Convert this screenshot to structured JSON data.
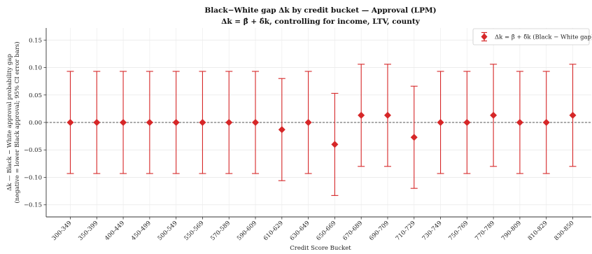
{
  "chart_data": {
    "type": "scatter",
    "title": "Black−White gap Δk by credit bucket — Approval (LPM)",
    "subtitle": "Δk = β̂ + δ̂k, controlling for income, LTV, county",
    "xlabel": "Credit Score Bucket",
    "ylabel_line1": "Δk — Black − White approval probability gap",
    "ylabel_line2": "(negative = lower Black approval; 95% CI error bars)",
    "legend_label": "Δk = β̂ + δ̂k  (Black − White gap)",
    "legend_position": "top-right",
    "ylim": [
      -0.172,
      0.172
    ],
    "yticks": [
      -0.15,
      -0.1,
      -0.05,
      0.0,
      0.05,
      0.1,
      0.15
    ],
    "ytick_labels": [
      "−0.15",
      "−0.10",
      "−0.05",
      "0.00",
      "0.05",
      "0.10",
      "0.15"
    ],
    "grid": true,
    "reference_line_y": 0,
    "colors": {
      "marker": "#d62728",
      "errorbar": "#d62728"
    },
    "categories": [
      "300-349",
      "350-399",
      "400-449",
      "450-499",
      "500-549",
      "550-569",
      "570-589",
      "590-609",
      "610-629",
      "630-649",
      "650-669",
      "670-689",
      "690-709",
      "710-729",
      "730-749",
      "750-769",
      "770-789",
      "790-809",
      "810-829",
      "830-850"
    ],
    "values": [
      0.0,
      0.0,
      0.0,
      0.0,
      0.0,
      0.0,
      0.0,
      0.0,
      -0.013,
      0.0,
      -0.04,
      0.013,
      0.013,
      -0.027,
      0.0,
      0.0,
      0.013,
      0.0,
      0.0,
      0.013
    ],
    "ci_low": [
      -0.093,
      -0.093,
      -0.093,
      -0.093,
      -0.093,
      -0.093,
      -0.093,
      -0.093,
      -0.106,
      -0.093,
      -0.133,
      -0.08,
      -0.08,
      -0.12,
      -0.093,
      -0.093,
      -0.08,
      -0.093,
      -0.093,
      -0.08
    ],
    "ci_high": [
      0.093,
      0.093,
      0.093,
      0.093,
      0.093,
      0.093,
      0.093,
      0.093,
      0.08,
      0.093,
      0.053,
      0.106,
      0.106,
      0.066,
      0.093,
      0.093,
      0.106,
      0.093,
      0.093,
      0.106
    ]
  }
}
